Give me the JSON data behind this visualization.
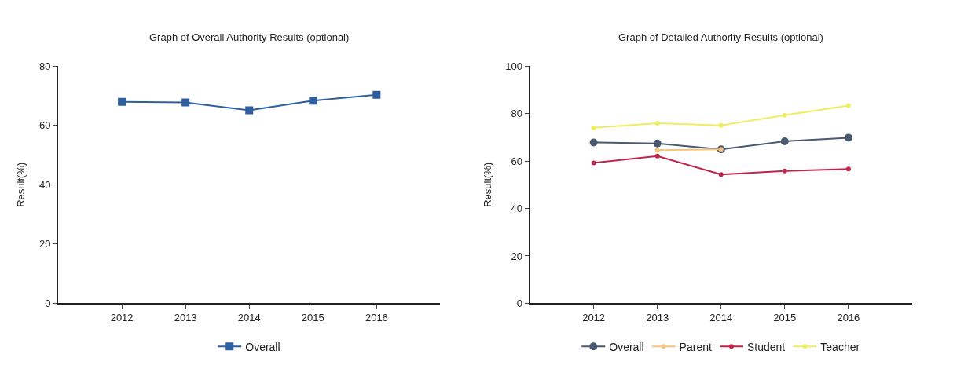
{
  "chart_data": [
    {
      "type": "line",
      "title": "Graph of Overall Authority Results (optional)",
      "ylabel": "Result(%)",
      "categories": [
        "2012",
        "2013",
        "2014",
        "2015",
        "2016"
      ],
      "ylim": [
        0,
        80
      ],
      "yticks": [
        0,
        20,
        40,
        60,
        80
      ],
      "legend": "bottom",
      "marker": "square",
      "series": [
        {
          "name": "Overall",
          "color": "#2e5f9e",
          "values": [
            67.9,
            67.7,
            65.1,
            68.3,
            70.3
          ]
        }
      ]
    },
    {
      "type": "line",
      "title": "Graph of Detailed Authority Results (optional)",
      "ylabel": "Result(%)",
      "categories": [
        "2012",
        "2013",
        "2014",
        "2015",
        "2016"
      ],
      "ylim": [
        0,
        100
      ],
      "yticks": [
        0,
        20,
        40,
        60,
        80,
        100
      ],
      "legend": "bottom",
      "marker": "circle",
      "series": [
        {
          "name": "Overall",
          "color": "#4a5a70",
          "values": [
            67.8,
            67.4,
            64.9,
            68.3,
            69.8
          ]
        },
        {
          "name": "Parent",
          "color": "#f3c580",
          "values": [
            null,
            64.6,
            64.9,
            null,
            null
          ]
        },
        {
          "name": "Student",
          "color": "#c0254a",
          "values": [
            59.2,
            62.1,
            54.3,
            55.8,
            56.6
          ]
        },
        {
          "name": "Teacher",
          "color": "#eeee66",
          "values": [
            74.0,
            75.9,
            75.0,
            79.3,
            83.3
          ]
        }
      ]
    }
  ]
}
